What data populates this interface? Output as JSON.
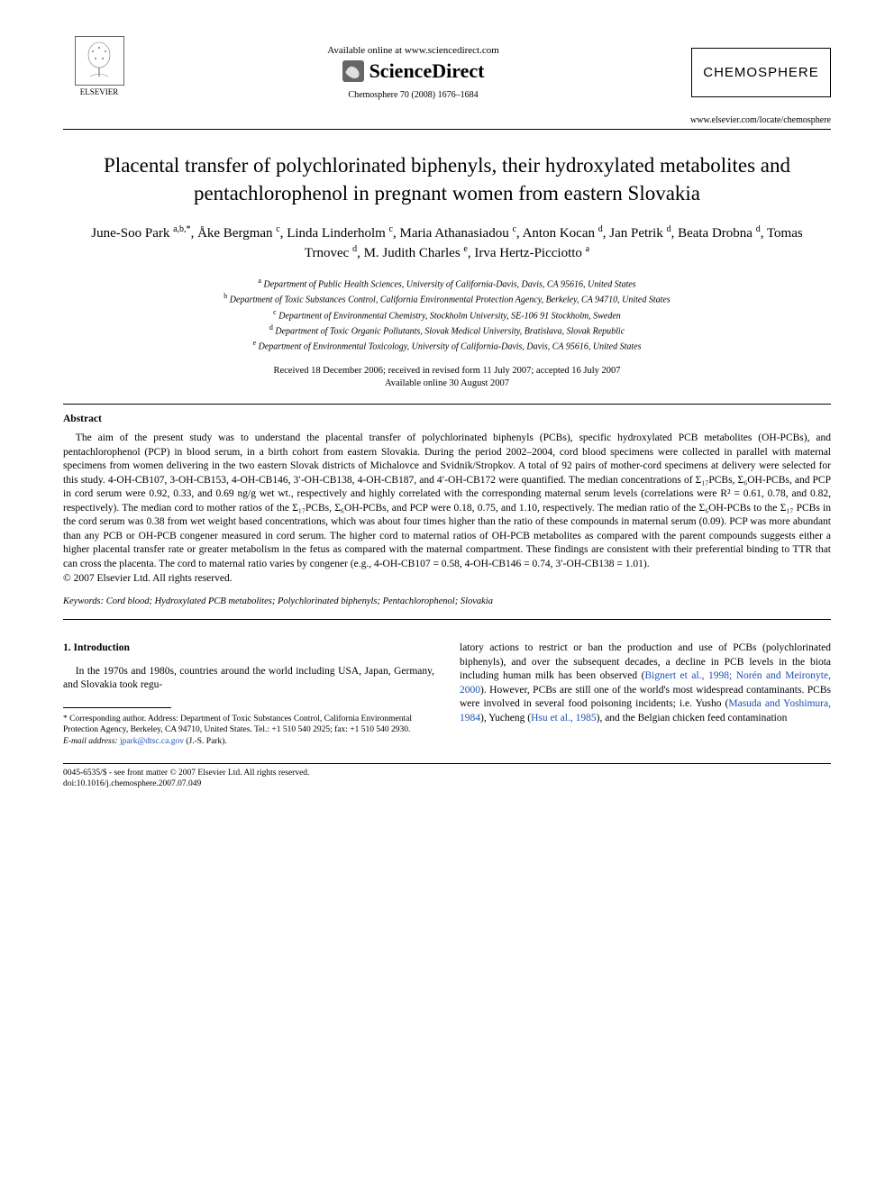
{
  "header": {
    "elsevier_label": "ELSEVIER",
    "available_online": "Available online at www.sciencedirect.com",
    "sciencedirect": "ScienceDirect",
    "citation": "Chemosphere 70 (2008) 1676–1684",
    "journal_box": "CHEMOSPHERE",
    "journal_url": "www.elsevier.com/locate/chemosphere"
  },
  "title": "Placental transfer of polychlorinated biphenyls, their hydroxylated metabolites and pentachlorophenol in pregnant women from eastern Slovakia",
  "authors_html": "June-Soo Park <sup>a,b,*</sup>, Åke Bergman <sup>c</sup>, Linda Linderholm <sup>c</sup>, Maria Athanasiadou <sup>c</sup>, Anton Kocan <sup>d</sup>, Jan Petrik <sup>d</sup>, Beata Drobna <sup>d</sup>, Tomas Trnovec <sup>d</sup>, M. Judith Charles <sup>e</sup>, Irva Hertz-Picciotto <sup>a</sup>",
  "affiliations": [
    {
      "sup": "a",
      "text": "Department of Public Health Sciences, University of California-Davis, Davis, CA 95616, United States"
    },
    {
      "sup": "b",
      "text": "Department of Toxic Substances Control, California Environmental Protection Agency, Berkeley, CA 94710, United States"
    },
    {
      "sup": "c",
      "text": "Department of Environmental Chemistry, Stockholm University, SE-106 91 Stockholm, Sweden"
    },
    {
      "sup": "d",
      "text": "Department of Toxic Organic Pollutants, Slovak Medical University, Bratislava, Slovak Republic"
    },
    {
      "sup": "e",
      "text": "Department of Environmental Toxicology, University of California-Davis, Davis, CA 95616, United States"
    }
  ],
  "dates": {
    "line1": "Received 18 December 2006; received in revised form 11 July 2007; accepted 16 July 2007",
    "line2": "Available online 30 August 2007"
  },
  "abstract": {
    "heading": "Abstract",
    "body": "The aim of the present study was to understand the placental transfer of polychlorinated biphenyls (PCBs), specific hydroxylated PCB metabolites (OH-PCBs), and pentachlorophenol (PCP) in blood serum, in a birth cohort from eastern Slovakia. During the period 2002–2004, cord blood specimens were collected in parallel with maternal specimens from women delivering in the two eastern Slovak districts of Michalovce and Svidnik/Stropkov. A total of 92 pairs of mother-cord specimens at delivery were selected for this study. 4-OH-CB107, 3-OH-CB153, 4-OH-CB146, 3′-OH-CB138, 4-OH-CB187, and 4′-OH-CB172 were quantified. The median concentrations of Σ₁₇PCBs, Σ₆OH-PCBs, and PCP in cord serum were 0.92, 0.33, and 0.69 ng/g wet wt., respectively and highly correlated with the corresponding maternal serum levels (correlations were R² = 0.61, 0.78, and 0.82, respectively). The median cord to mother ratios of the Σ₁₇PCBs, Σ₆OH-PCBs, and PCP were 0.18, 0.75, and 1.10, respectively. The median ratio of the Σ₆OH-PCBs to the Σ₁₇ PCBs in the cord serum was 0.38 from wet weight based concentrations, which was about four times higher than the ratio of these compounds in maternal serum (0.09). PCP was more abundant than any PCB or OH-PCB congener measured in cord serum. The higher cord to maternal ratios of OH-PCB metabolites as compared with the parent compounds suggests either a higher placental transfer rate or greater metabolism in the fetus as compared with the maternal compartment. These findings are consistent with their preferential binding to TTR that can cross the placenta. The cord to maternal ratio varies by congener (e.g., 4-OH-CB107 = 0.58, 4-OH-CB146 = 0.74, 3′-OH-CB138 = 1.01).",
    "copyright": "© 2007 Elsevier Ltd. All rights reserved."
  },
  "keywords": {
    "label": "Keywords:",
    "text": "Cord blood; Hydroxylated PCB metabolites; Polychlorinated biphenyls; Pentachlorophenol; Slovakia"
  },
  "introduction": {
    "heading": "1. Introduction",
    "left_para": "In the 1970s and 1980s, countries around the world including USA, Japan, Germany, and Slovakia took regu-",
    "right_para_pre": "latory actions to restrict or ban the production and use of PCBs (polychlorinated biphenyls), and over the subsequent decades, a decline in PCB levels in the biota including human milk has been observed (",
    "ref1": "Bignert et al., 1998; Norén and Meironyte, 2000",
    "right_para_mid1": "). However, PCBs are still one of the world's most widespread contaminants. PCBs were involved in several food poisoning incidents; i.e. Yusho (",
    "ref2": "Masuda and Yoshimura, 1984",
    "right_para_mid2": "), Yucheng (",
    "ref3": "Hsu et al., 1985",
    "right_para_end": "), and the Belgian chicken feed contamination"
  },
  "footnote": {
    "corresponding": "* Corresponding author. Address: Department of Toxic Substances Control, California Environmental Protection Agency, Berkeley, CA 94710, United States. Tel.: +1 510 540 2925; fax: +1 510 540 2930.",
    "email_label": "E-mail address:",
    "email": "jpark@dtsc.ca.gov",
    "email_name": "(J.-S. Park)."
  },
  "footer": {
    "line1": "0045-6535/$ - see front matter © 2007 Elsevier Ltd. All rights reserved.",
    "line2": "doi:10.1016/j.chemosphere.2007.07.049"
  },
  "colors": {
    "link": "#1a4fb5",
    "text": "#000000",
    "bg": "#ffffff"
  }
}
